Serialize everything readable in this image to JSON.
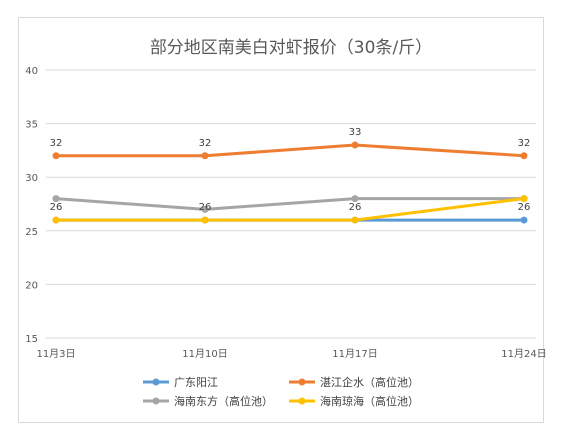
{
  "chart_data": {
    "type": "line",
    "title": "部分地区南美白对虾报价（30条/斤）",
    "xlabel": "",
    "ylabel": "",
    "categories": [
      "11月3日",
      "11月10日",
      "11月17日",
      "11月24日"
    ],
    "ylim": [
      15,
      40
    ],
    "yticks": [
      15,
      20,
      25,
      30,
      35,
      40
    ],
    "grid": true,
    "legend_position": "bottom",
    "series": [
      {
        "name": "广东阳江",
        "values": [
          26,
          26,
          26,
          26
        ],
        "color": "#5b9bd5",
        "show_labels": false
      },
      {
        "name": "湛江企水（高位池）",
        "values": [
          32,
          32,
          33,
          32
        ],
        "color": "#ed7d31",
        "show_labels": true
      },
      {
        "name": "海南东方（高位池）",
        "values": [
          28,
          27,
          28,
          28
        ],
        "color": "#a5a5a5",
        "show_labels": false
      },
      {
        "name": "海南琼海（高位池）",
        "values": [
          26,
          26,
          26,
          28
        ],
        "color": "#ffc000",
        "show_labels": false
      }
    ],
    "data_labels": [
      {
        "category_index": 0,
        "value": 32,
        "text": "32"
      },
      {
        "category_index": 1,
        "value": 32,
        "text": "32"
      },
      {
        "category_index": 2,
        "value": 33,
        "text": "33"
      },
      {
        "category_index": 3,
        "value": 32,
        "text": "32"
      },
      {
        "category_index": 0,
        "value": 26,
        "text": "26"
      },
      {
        "category_index": 1,
        "value": 26,
        "text": "26"
      },
      {
        "category_index": 2,
        "value": 26,
        "text": "26"
      },
      {
        "category_index": 3,
        "value": 26,
        "text": "26"
      }
    ]
  }
}
